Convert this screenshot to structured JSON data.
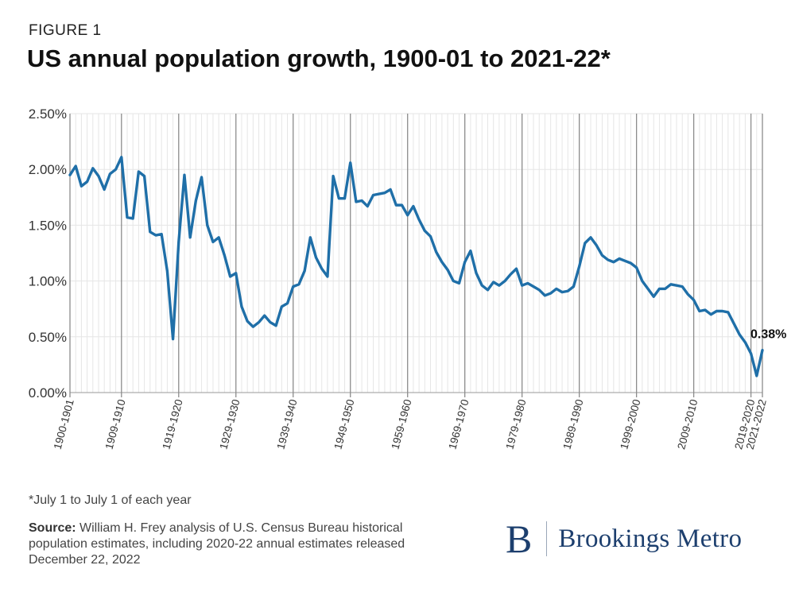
{
  "figure_label": "FIGURE 1",
  "title": "US annual population growth, 1900-01 to 2021-22*",
  "footnote": "*July 1 to July 1 of each year",
  "source_label": "Source:",
  "source_text": " William H. Frey analysis of U.S. Census Bureau historical population estimates, including 2020-22 annual estimates released December 22, 2022",
  "logo": {
    "mark": "B",
    "name": "Brookings Metro"
  },
  "colors": {
    "line": "#1f6fa8",
    "brand": "#1d3f6e",
    "grid": "#e6e6e6",
    "major_grid": "#8c8c8c"
  },
  "chart_data": {
    "type": "line",
    "title": "US annual population growth, 1900-01 to 2021-22*",
    "xlabel": "",
    "ylabel": "",
    "ylim": [
      0,
      2.5
    ],
    "y_ticks": [
      0,
      0.5,
      1.0,
      1.5,
      2.0,
      2.5
    ],
    "y_tick_labels": [
      "0.00%",
      "0.50%",
      "1.00%",
      "1.50%",
      "2.00%",
      "2.50%"
    ],
    "x_tick_labels": [
      {
        "index": 0,
        "label": "1900-1901"
      },
      {
        "index": 9,
        "label": "1909-1910"
      },
      {
        "index": 19,
        "label": "1919-1920"
      },
      {
        "index": 29,
        "label": "1929-1930"
      },
      {
        "index": 39,
        "label": "1939-1940"
      },
      {
        "index": 49,
        "label": "1949-1950"
      },
      {
        "index": 59,
        "label": "1959-1960"
      },
      {
        "index": 69,
        "label": "1969-1970"
      },
      {
        "index": 79,
        "label": "1979-1980"
      },
      {
        "index": 89,
        "label": "1989-1990"
      },
      {
        "index": 99,
        "label": "1999-2000"
      },
      {
        "index": 109,
        "label": "2009-2010"
      },
      {
        "index": 119,
        "label": "2019-2020"
      },
      {
        "index": 121,
        "label": "2021-2022"
      }
    ],
    "major_grid_indices": [
      0,
      9,
      19,
      29,
      39,
      49,
      59,
      69,
      79,
      89,
      99,
      109,
      119,
      121
    ],
    "grid": true,
    "annotation": {
      "index": 121,
      "label": "0.38%"
    },
    "series": [
      {
        "values": [
          1.95,
          2.03,
          1.85,
          1.89,
          2.01,
          1.94,
          1.82,
          1.96,
          2.0,
          2.11,
          1.57,
          1.56,
          1.98,
          1.94,
          1.44,
          1.41,
          1.42,
          1.09,
          0.48,
          1.35,
          1.95,
          1.39,
          1.72,
          1.93,
          1.5,
          1.35,
          1.39,
          1.23,
          1.04,
          1.07,
          0.77,
          0.64,
          0.59,
          0.63,
          0.69,
          0.63,
          0.6,
          0.77,
          0.8,
          0.95,
          0.97,
          1.09,
          1.39,
          1.21,
          1.11,
          1.04,
          1.94,
          1.74,
          1.74,
          2.06,
          1.71,
          1.72,
          1.67,
          1.77,
          1.78,
          1.79,
          1.82,
          1.68,
          1.68,
          1.59,
          1.67,
          1.55,
          1.45,
          1.4,
          1.26,
          1.17,
          1.1,
          1.0,
          0.98,
          1.17,
          1.27,
          1.07,
          0.96,
          0.92,
          0.99,
          0.96,
          1.0,
          1.06,
          1.11,
          0.96,
          0.98,
          0.95,
          0.92,
          0.87,
          0.89,
          0.93,
          0.9,
          0.91,
          0.95,
          1.13,
          1.34,
          1.39,
          1.32,
          1.23,
          1.19,
          1.17,
          1.2,
          1.18,
          1.16,
          1.12,
          1.0,
          0.93,
          0.86,
          0.93,
          0.93,
          0.97,
          0.96,
          0.95,
          0.88,
          0.83,
          0.73,
          0.74,
          0.7,
          0.73,
          0.73,
          0.72,
          0.62,
          0.52,
          0.45,
          0.35,
          0.15,
          0.38
        ]
      }
    ]
  }
}
